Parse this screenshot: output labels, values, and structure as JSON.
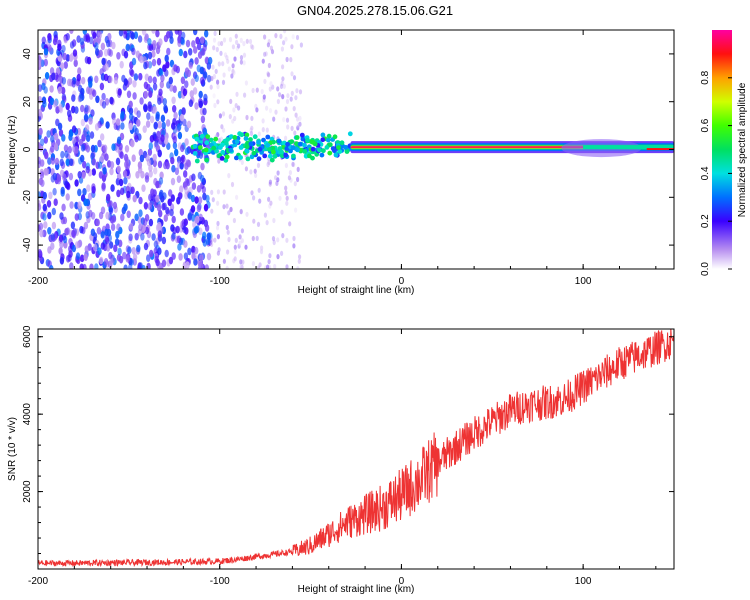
{
  "title": "GN04.2025.278.15.06.G21",
  "chart_data": [
    {
      "type": "heatmap",
      "name": "spectrogram",
      "xlabel": "Height of straight line (km)",
      "ylabel": "Frequency (Hz)",
      "xlim": [
        -200,
        150
      ],
      "ylim": [
        -50,
        50
      ],
      "xticks": [
        -200,
        -100,
        0,
        100
      ],
      "yticks": [
        -40,
        -20,
        0,
        20,
        40
      ],
      "description_bands": [
        {
          "x_from": -200,
          "x_to": -105,
          "freq_half_width": 50,
          "amplitude": 0.18,
          "note": "dense scattered noise"
        },
        {
          "x_from": -105,
          "x_to": -55,
          "freq_half_width": 50,
          "amplitude": 0.08,
          "note": "sparse scattered noise"
        },
        {
          "x_from": -115,
          "x_to": -28,
          "freq_center": 1,
          "freq_half_width": 6,
          "amplitude": 0.35,
          "note": "noisy carrier"
        },
        {
          "x_from": -28,
          "x_to": 150,
          "freq_center": 1,
          "freq_half_width": 1,
          "amplitude": 0.95,
          "note": "clean carrier line"
        }
      ],
      "colorbar": {
        "label": "Normalized spectral amplitude",
        "range": [
          0,
          1
        ],
        "ticks": [
          0.0,
          0.2,
          0.4,
          0.6,
          0.8
        ],
        "tick_labels": [
          "0.0",
          "0.2",
          "0.4",
          "0.6",
          "0.8"
        ]
      }
    },
    {
      "type": "line",
      "name": "snr",
      "xlabel": "Height of straight line (km)",
      "ylabel": "SNR (10 * v/v)",
      "xlim": [
        -200,
        150
      ],
      "ylim": [
        0,
        6200
      ],
      "xticks": [
        -200,
        -100,
        0,
        100
      ],
      "yticks": [
        2000,
        4000,
        6000
      ],
      "series": [
        {
          "name": "SNR",
          "color": "#ee3333",
          "x": [
            -200,
            -180,
            -160,
            -140,
            -120,
            -100,
            -90,
            -80,
            -70,
            -60,
            -50,
            -40,
            -30,
            -20,
            -10,
            0,
            10,
            20,
            30,
            40,
            50,
            60,
            70,
            80,
            90,
            100,
            110,
            120,
            130,
            140,
            150
          ],
          "y": [
            150,
            150,
            160,
            170,
            180,
            200,
            250,
            320,
            380,
            450,
            600,
            900,
            1200,
            1400,
            1600,
            1900,
            2300,
            2750,
            3150,
            3500,
            3800,
            4100,
            4250,
            4300,
            4400,
            4700,
            5000,
            5300,
            5500,
            5700,
            5900
          ]
        }
      ]
    }
  ],
  "colors": {
    "axis": "#000000",
    "line": "#ee3333"
  }
}
